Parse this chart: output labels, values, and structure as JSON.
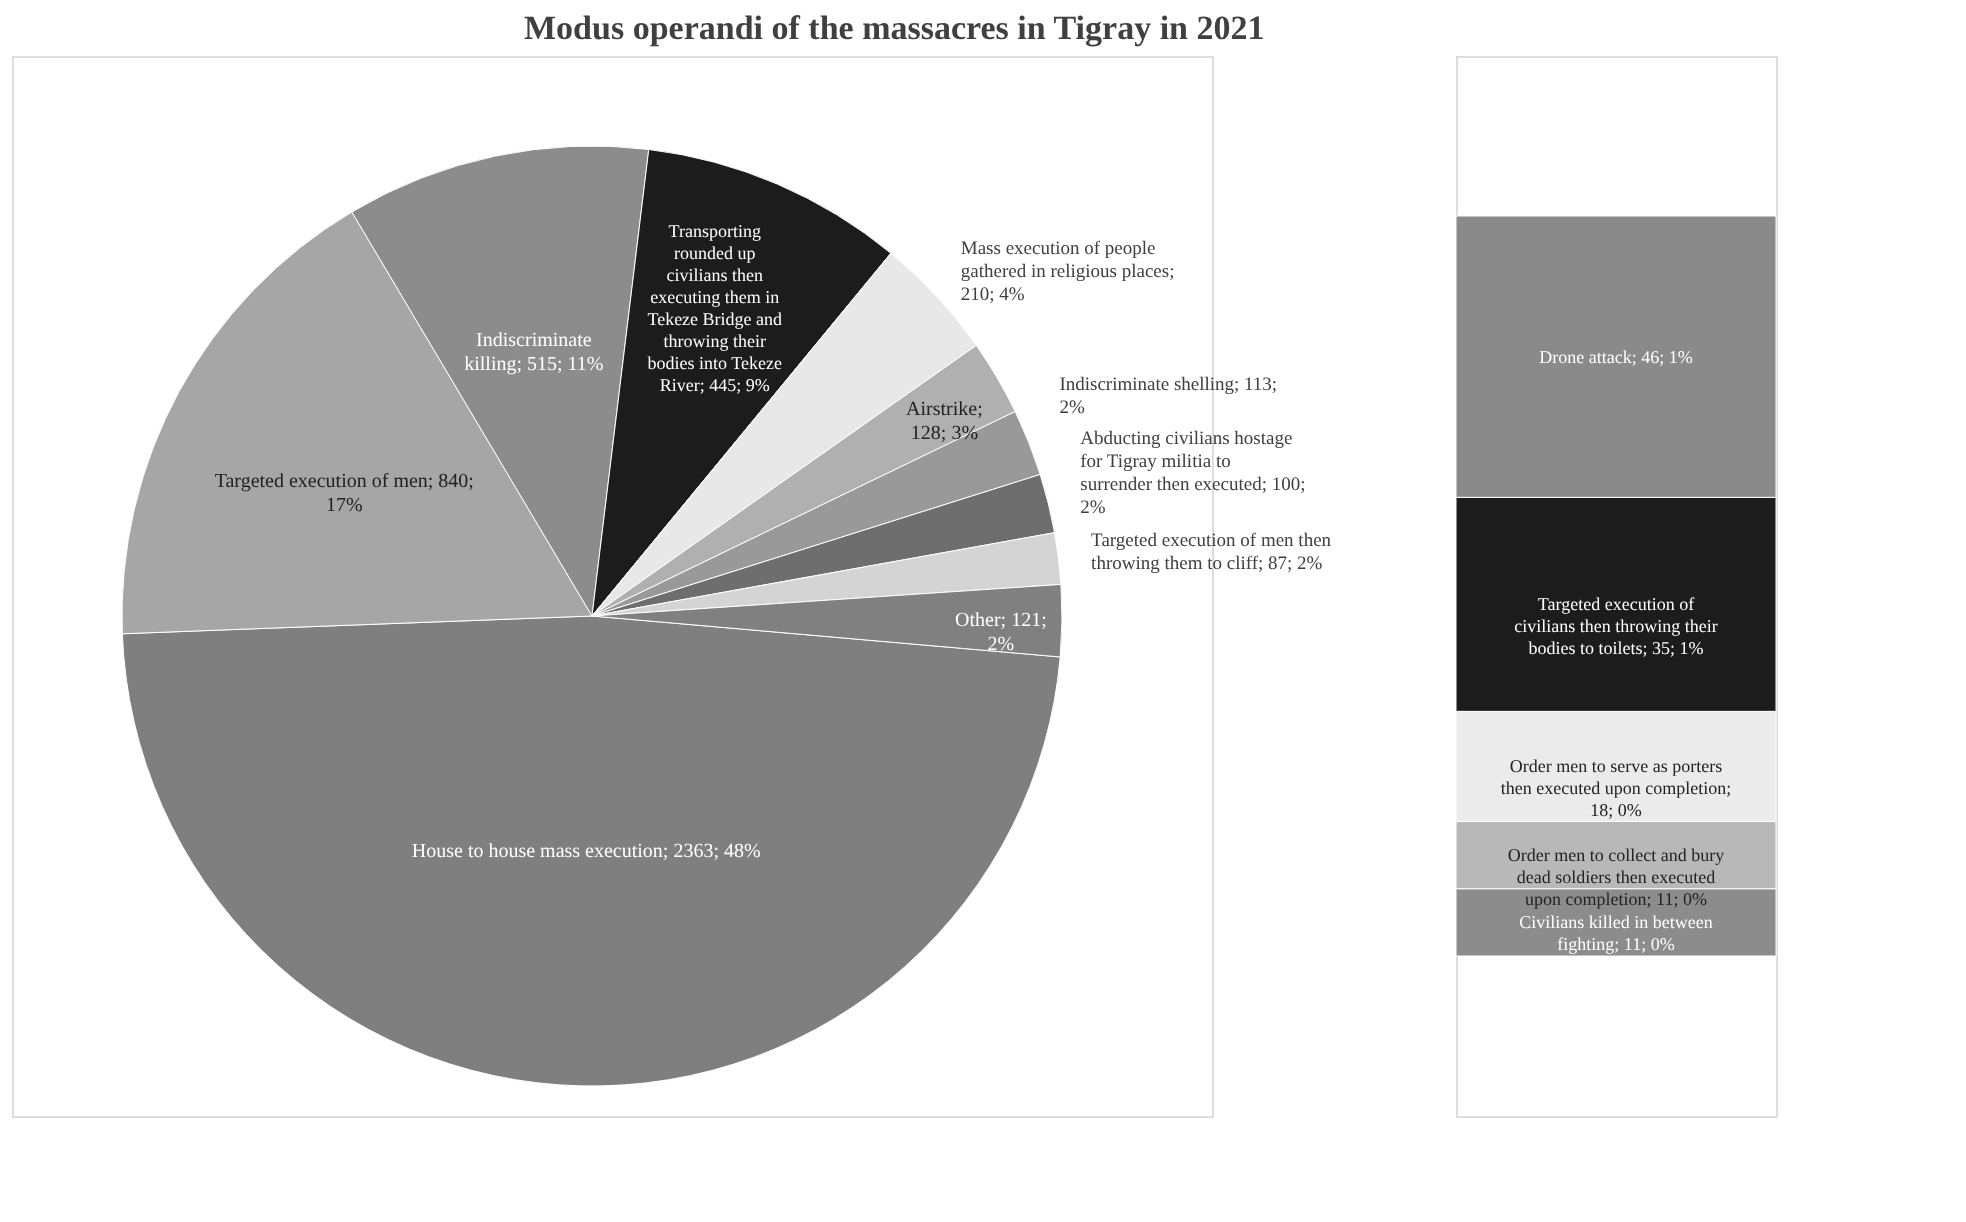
{
  "chart_data": [
    {
      "type": "pie",
      "title": "Modus operandi of the massacres in Tigray in 2021",
      "categories": [
        "House to house mass execution",
        "Targeted execution of men",
        "Indiscriminate killing",
        "Transporting rounded up civilians then executing them in Tekeze Bridge and throwing their bodies into Tekeze River",
        "Mass execution of people gathered in religious places",
        "Airstrike",
        "Indiscriminate shelling",
        "Abducting civilians hostage for Tigray militia to surrender then executed",
        "Targeted execution of men then throwing them to cliff",
        "Other"
      ],
      "values": [
        2363,
        840,
        515,
        445,
        210,
        128,
        113,
        100,
        87,
        121
      ],
      "colors": [
        "#7f7f7f",
        "#a6a6a6",
        "#8c8c8c",
        "#1c1c1c",
        "#e8e8e8",
        "#b0b0b0",
        "#999999",
        "#6e6e6e",
        "#d4d4d4",
        "#808080"
      ],
      "value_labels": [
        "; 2363; 48%",
        "; 840; 17%",
        "; 515; 11%",
        "; 445; 9%",
        "; 210; 4%",
        "; 128; 3%",
        "; 113; 2%",
        "; 100; 2%",
        "; 87; 2%",
        "; 121; 2%"
      ]
    },
    {
      "type": "bar",
      "stacked": true,
      "categories": [
        null
      ],
      "series": [
        {
          "color": "#8c8c8c",
          "values": [
            11
          ],
          "value_labels": [
            "Civilians killed in between fighting; 11; 0%"
          ]
        },
        {
          "color": "#b8b8b8",
          "values": [
            11
          ],
          "value_labels": [
            "Order men to collect and bury dead soldiers then executed upon completion; 11; 0%"
          ]
        },
        {
          "color": "#ebebeb",
          "values": [
            18
          ],
          "value_labels": [
            "Order men to serve as porters then executed upon completion; 18; 0%"
          ]
        },
        {
          "color": "#1c1c1c",
          "values": [
            35
          ],
          "value_labels": [
            "Targeted execution of civilians then throwing their bodies to toilets; 35; 1%"
          ]
        },
        {
          "color": "#8a8a8a",
          "values": [
            46
          ],
          "value_labels": [
            "Drone attack; 46; 1%"
          ]
        }
      ]
    }
  ]
}
